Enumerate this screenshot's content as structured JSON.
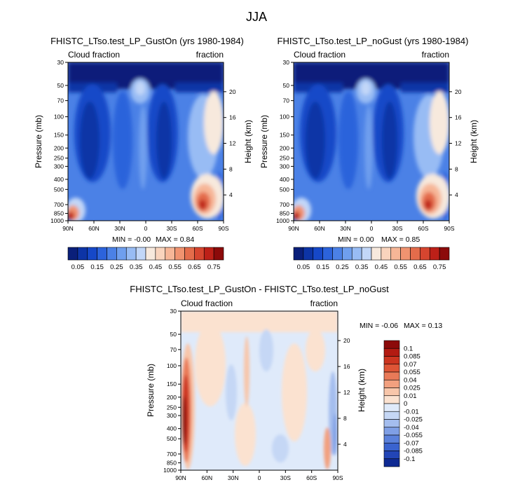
{
  "figure_title": "JJA",
  "chart_data": [
    {
      "type": "heatmap",
      "title": "FHISTC_LTso.test_LP_GustOn (yrs 1980-1984)",
      "left_label": "Cloud fraction",
      "right_label": "fraction",
      "ylabel": "Pressure (mb)",
      "ylabel_right": "Height (km)",
      "x_ticks": [
        "90N",
        "60N",
        "30N",
        "0",
        "30S",
        "60S",
        "90S"
      ],
      "y_ticks": [
        "30",
        "50",
        "70",
        "100",
        "150",
        "200",
        "250",
        "300",
        "400",
        "500",
        "700",
        "850",
        "1000"
      ],
      "y2_ticks": [
        "20",
        "16",
        "12",
        "8",
        "4"
      ],
      "xlim": [
        90,
        -90
      ],
      "ylim": [
        30,
        1000
      ],
      "min_text": "MIN = -0.00",
      "max_text": "MAX = 0.84",
      "min": 0.0,
      "max": 0.84,
      "palette": "sequential",
      "colorbar_labels": [
        "0.05",
        "0.15",
        "0.25",
        "0.35",
        "0.45",
        "0.55",
        "0.65",
        "0.75"
      ]
    },
    {
      "type": "heatmap",
      "title": "FHISTC_LTso.test_LP_noGust (yrs 1980-1984)",
      "left_label": "Cloud fraction",
      "right_label": "fraction",
      "ylabel": "Pressure (mb)",
      "ylabel_right": "Height (km)",
      "x_ticks": [
        "90N",
        "60N",
        "30N",
        "0",
        "30S",
        "60S",
        "90S"
      ],
      "y_ticks": [
        "30",
        "50",
        "70",
        "100",
        "150",
        "200",
        "250",
        "300",
        "400",
        "500",
        "700",
        "850",
        "1000"
      ],
      "y2_ticks": [
        "20",
        "16",
        "12",
        "8",
        "4"
      ],
      "xlim": [
        90,
        -90
      ],
      "ylim": [
        30,
        1000
      ],
      "min_text": "MIN = 0.00",
      "max_text": "MAX = 0.85",
      "min": 0.0,
      "max": 0.85,
      "palette": "sequential",
      "colorbar_labels": [
        "0.05",
        "0.15",
        "0.25",
        "0.35",
        "0.45",
        "0.55",
        "0.65",
        "0.75"
      ]
    },
    {
      "type": "heatmap",
      "title": "FHISTC_LTso.test_LP_GustOn - FHISTC_LTso.test_LP_noGust",
      "left_label": "Cloud fraction",
      "right_label": "fraction",
      "ylabel": "Pressure (mb)",
      "ylabel_right": "Height (km)",
      "x_ticks": [
        "90N",
        "60N",
        "30N",
        "0",
        "30S",
        "60S",
        "90S"
      ],
      "y_ticks": [
        "30",
        "50",
        "70",
        "100",
        "150",
        "200",
        "250",
        "300",
        "400",
        "500",
        "700",
        "850",
        "1000"
      ],
      "y2_ticks": [
        "20",
        "16",
        "12",
        "8",
        "4"
      ],
      "xlim": [
        90,
        -90
      ],
      "ylim": [
        30,
        1000
      ],
      "min_text": "MIN = -0.06",
      "max_text": "MAX = 0.13",
      "min": -0.06,
      "max": 0.13,
      "palette": "diverging",
      "colorbar_labels": [
        "0.1",
        "0.085",
        "0.07",
        "0.055",
        "0.04",
        "0.025",
        "0.01",
        "0",
        "-0.01",
        "-0.025",
        "-0.04",
        "-0.055",
        "-0.07",
        "-0.085",
        "-0.1"
      ]
    }
  ],
  "palettes": {
    "sequential": [
      "#0a1f7a",
      "#0d34a6",
      "#1648c8",
      "#2c63db",
      "#4b81e6",
      "#6f9fee",
      "#98bcf4",
      "#c2d7f8",
      "#f7e9dd",
      "#f9d4bd",
      "#f6b697",
      "#f09370",
      "#e46c4b",
      "#d6452f",
      "#bd2018",
      "#8c0a0a"
    ],
    "diverging": [
      "#8c0a0a",
      "#b31b12",
      "#cc3520",
      "#de5536",
      "#e97a58",
      "#f2a07f",
      "#f8c6aa",
      "#fbe2d0",
      "#dfeafa",
      "#c5d7f5",
      "#a4bdee",
      "#7f9fe5",
      "#5b81db",
      "#3a63cf",
      "#2245b6",
      "#0f2a93"
    ]
  }
}
